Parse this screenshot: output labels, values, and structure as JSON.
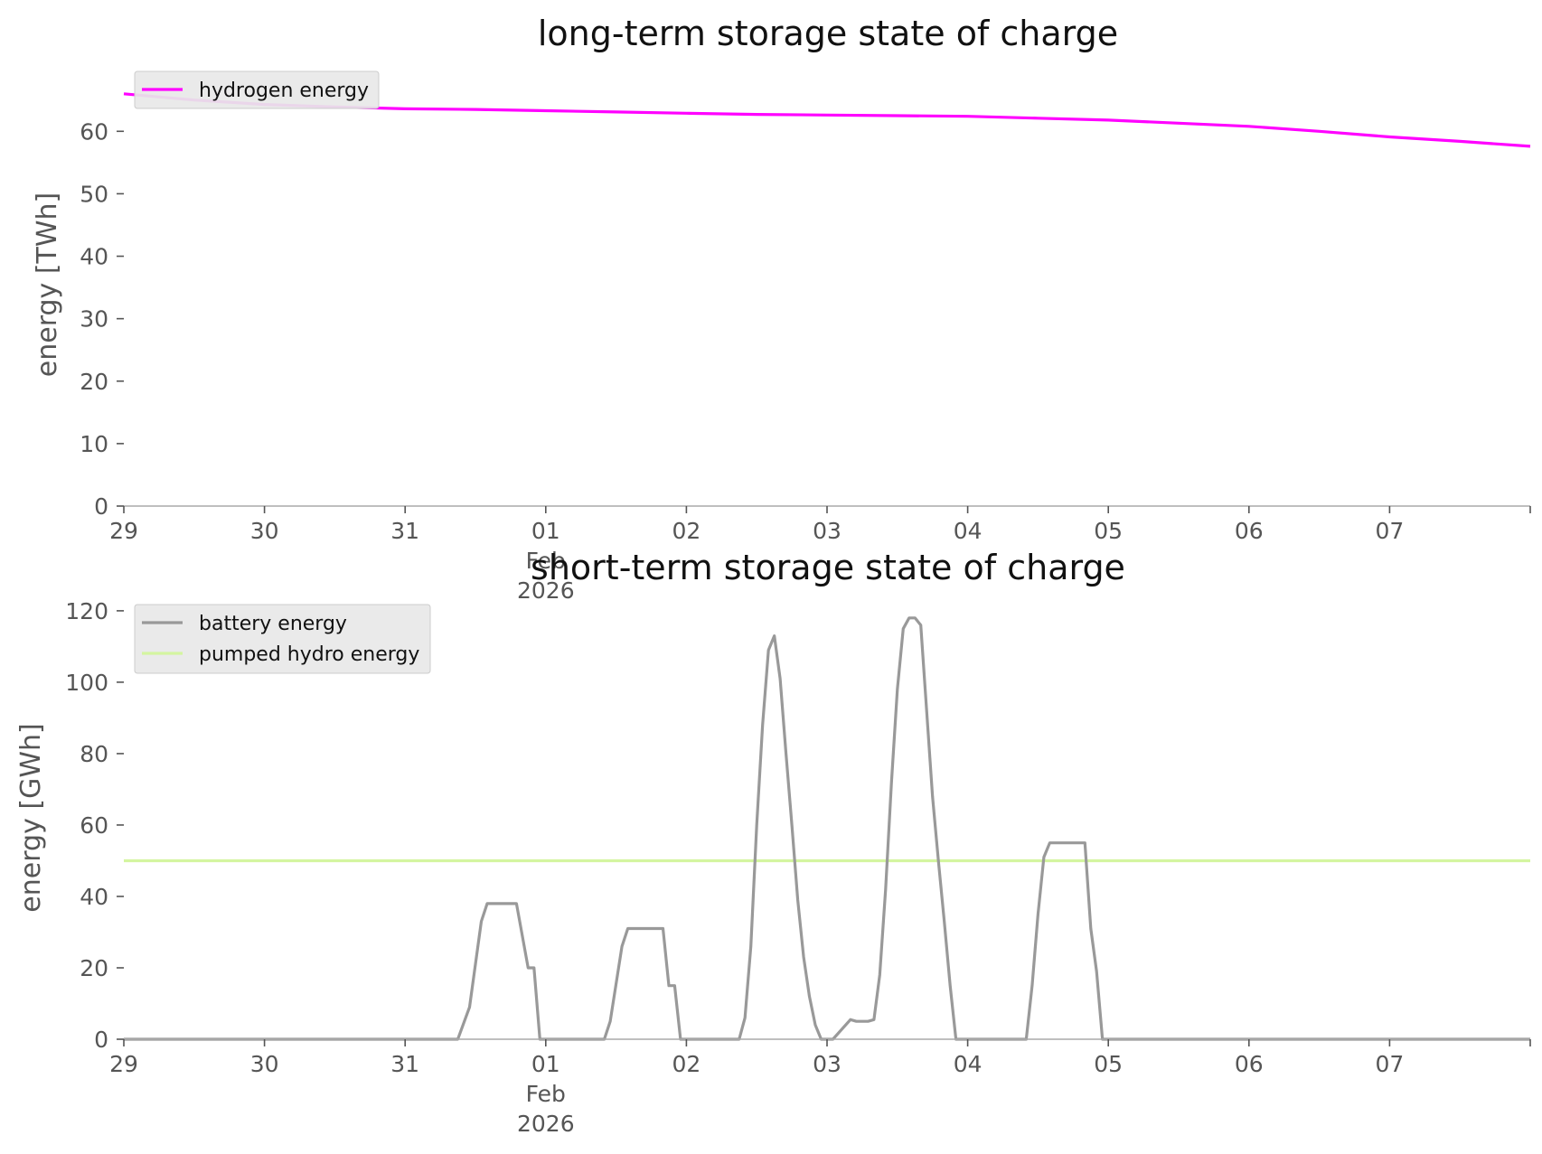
{
  "chart_data": [
    {
      "type": "line",
      "title": "long-term storage state of charge",
      "xlabel": "",
      "ylabel": "energy [TWh]",
      "ylim": [
        0,
        68
      ],
      "yticks": [
        0,
        10,
        20,
        30,
        40,
        50,
        60
      ],
      "xlim": [
        "2026-01-29",
        "2026-02-08"
      ],
      "xticks": [
        {
          "date": "2026-01-29",
          "lines": [
            "29"
          ]
        },
        {
          "date": "2026-01-30",
          "lines": [
            "30"
          ]
        },
        {
          "date": "2026-01-31",
          "lines": [
            "31"
          ]
        },
        {
          "date": "2026-02-01",
          "lines": [
            "01",
            "Feb",
            "2026"
          ]
        },
        {
          "date": "2026-02-02",
          "lines": [
            "02"
          ]
        },
        {
          "date": "2026-02-03",
          "lines": [
            "03"
          ]
        },
        {
          "date": "2026-02-04",
          "lines": [
            "04"
          ]
        },
        {
          "date": "2026-02-05",
          "lines": [
            "05"
          ]
        },
        {
          "date": "2026-02-06",
          "lines": [
            "06"
          ]
        },
        {
          "date": "2026-02-07",
          "lines": [
            "07"
          ]
        }
      ],
      "grid": false,
      "legend_position": "top-left",
      "series": [
        {
          "name": "hydrogen energy",
          "color": "#ff00ff",
          "points": [
            [
              "2026-01-29 00:00",
              66.0
            ],
            [
              "2026-01-29 12:00",
              65.0
            ],
            [
              "2026-01-30 00:00",
              64.3
            ],
            [
              "2026-01-30 12:00",
              63.9
            ],
            [
              "2026-01-31 00:00",
              63.6
            ],
            [
              "2026-01-31 12:00",
              63.5
            ],
            [
              "2026-02-01 00:00",
              63.3
            ],
            [
              "2026-02-01 12:00",
              63.1
            ],
            [
              "2026-02-02 00:00",
              62.9
            ],
            [
              "2026-02-02 12:00",
              62.7
            ],
            [
              "2026-02-03 00:00",
              62.6
            ],
            [
              "2026-02-03 12:00",
              62.5
            ],
            [
              "2026-02-04 00:00",
              62.4
            ],
            [
              "2026-02-04 12:00",
              62.1
            ],
            [
              "2026-02-05 00:00",
              61.8
            ],
            [
              "2026-02-05 12:00",
              61.3
            ],
            [
              "2026-02-06 00:00",
              60.8
            ],
            [
              "2026-02-06 12:00",
              60.0
            ],
            [
              "2026-02-07 00:00",
              59.1
            ],
            [
              "2026-02-07 12:00",
              58.4
            ],
            [
              "2026-02-08 00:00",
              57.6
            ]
          ]
        }
      ]
    },
    {
      "type": "line",
      "title": "short-term storage state of charge",
      "xlabel": "",
      "ylabel": "energy [GWh]",
      "ylim": [
        0,
        122
      ],
      "yticks": [
        0,
        20,
        40,
        60,
        80,
        100,
        120
      ],
      "xlim": [
        "2026-01-29",
        "2026-02-08"
      ],
      "xticks": [
        {
          "date": "2026-01-29",
          "lines": [
            "29"
          ]
        },
        {
          "date": "2026-01-30",
          "lines": [
            "30"
          ]
        },
        {
          "date": "2026-01-31",
          "lines": [
            "31"
          ]
        },
        {
          "date": "2026-02-01",
          "lines": [
            "01",
            "Feb",
            "2026"
          ]
        },
        {
          "date": "2026-02-02",
          "lines": [
            "02"
          ]
        },
        {
          "date": "2026-02-03",
          "lines": [
            "03"
          ]
        },
        {
          "date": "2026-02-04",
          "lines": [
            "04"
          ]
        },
        {
          "date": "2026-02-05",
          "lines": [
            "05"
          ]
        },
        {
          "date": "2026-02-06",
          "lines": [
            "06"
          ]
        },
        {
          "date": "2026-02-07",
          "lines": [
            "07"
          ]
        }
      ],
      "grid": false,
      "legend_position": "top-left",
      "series": [
        {
          "name": "battery energy",
          "color": "#999999",
          "points": [
            [
              "2026-01-29 00:00",
              0
            ],
            [
              "2026-01-31 09:00",
              0
            ],
            [
              "2026-01-31 11:00",
              9
            ],
            [
              "2026-01-31 13:00",
              33
            ],
            [
              "2026-01-31 14:00",
              38
            ],
            [
              "2026-01-31 19:00",
              38
            ],
            [
              "2026-01-31 21:00",
              20
            ],
            [
              "2026-01-31 22:00",
              20
            ],
            [
              "2026-01-31 23:00",
              0
            ],
            [
              "2026-02-01 10:00",
              0
            ],
            [
              "2026-02-01 11:00",
              5
            ],
            [
              "2026-02-01 13:00",
              26
            ],
            [
              "2026-02-01 14:00",
              31
            ],
            [
              "2026-02-01 20:00",
              31
            ],
            [
              "2026-02-01 21:00",
              15
            ],
            [
              "2026-02-01 22:00",
              15
            ],
            [
              "2026-02-01 23:00",
              0
            ],
            [
              "2026-02-02 09:00",
              0
            ],
            [
              "2026-02-02 10:00",
              6
            ],
            [
              "2026-02-02 11:00",
              26
            ],
            [
              "2026-02-02 12:00",
              60
            ],
            [
              "2026-02-02 13:00",
              88
            ],
            [
              "2026-02-02 14:00",
              109
            ],
            [
              "2026-02-02 15:00",
              113
            ],
            [
              "2026-02-02 16:00",
              101
            ],
            [
              "2026-02-02 17:00",
              80
            ],
            [
              "2026-02-02 18:00",
              60
            ],
            [
              "2026-02-02 19:00",
              39
            ],
            [
              "2026-02-02 20:00",
              23
            ],
            [
              "2026-02-02 21:00",
              12
            ],
            [
              "2026-02-02 22:00",
              4
            ],
            [
              "2026-02-02 23:00",
              0
            ],
            [
              "2026-02-03 01:00",
              0
            ],
            [
              "2026-02-03 04:00",
              5.5
            ],
            [
              "2026-02-03 05:00",
              5
            ],
            [
              "2026-02-03 07:00",
              5
            ],
            [
              "2026-02-03 08:00",
              5.5
            ],
            [
              "2026-02-03 09:00",
              18
            ],
            [
              "2026-02-03 10:00",
              42
            ],
            [
              "2026-02-03 11:00",
              72
            ],
            [
              "2026-02-03 12:00",
              98
            ],
            [
              "2026-02-03 13:00",
              115
            ],
            [
              "2026-02-03 14:00",
              118
            ],
            [
              "2026-02-03 15:00",
              118
            ],
            [
              "2026-02-03 16:00",
              116
            ],
            [
              "2026-02-03 17:00",
              92
            ],
            [
              "2026-02-03 18:00",
              68
            ],
            [
              "2026-02-03 19:00",
              50
            ],
            [
              "2026-02-03 20:00",
              33
            ],
            [
              "2026-02-03 21:00",
              15
            ],
            [
              "2026-02-03 22:00",
              0
            ],
            [
              "2026-02-04 10:00",
              0
            ],
            [
              "2026-02-04 11:00",
              15
            ],
            [
              "2026-02-04 12:00",
              35
            ],
            [
              "2026-02-04 13:00",
              51
            ],
            [
              "2026-02-04 14:00",
              55
            ],
            [
              "2026-02-04 20:00",
              55
            ],
            [
              "2026-02-04 21:00",
              31
            ],
            [
              "2026-02-04 22:00",
              19
            ],
            [
              "2026-02-04 23:00",
              0
            ],
            [
              "2026-02-08 00:00",
              0
            ]
          ]
        },
        {
          "name": "pumped hydro energy",
          "color": "#d4f5a0",
          "points": [
            [
              "2026-01-29 00:00",
              50
            ],
            [
              "2026-02-08 00:00",
              50
            ]
          ]
        }
      ]
    }
  ]
}
